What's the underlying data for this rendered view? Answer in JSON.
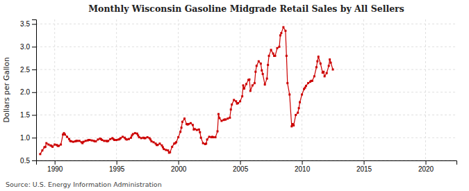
{
  "chart_data": {
    "type": "line",
    "title": "Monthly Wisconsin Gasoline Midgrade Retail Sales by All Sellers",
    "ylabel": "Dollars per Gallon",
    "source": "Source: U.S. Energy Information Administration",
    "color": "#cc0000",
    "marker": "square",
    "grid": true,
    "xlim": [
      1988.5,
      2022.5
    ],
    "ylim": [
      0.5,
      3.6
    ],
    "xticks": [
      1990,
      1995,
      2000,
      2005,
      2010,
      2015,
      2020
    ],
    "yticks": [
      0.5,
      {
        "value": 1.0,
        "label": "1.0"
      },
      1.5,
      {
        "value": 2.0,
        "label": "2.0"
      },
      2.5,
      {
        "value": 3.0,
        "label": "3.0"
      },
      3.5
    ],
    "x": [
      1988.83,
      1989.0,
      1989.17,
      1989.25,
      1989.33,
      1989.5,
      1989.67,
      1989.75,
      1989.83,
      1990.0,
      1990.17,
      1990.25,
      1990.33,
      1990.5,
      1990.67,
      1990.75,
      1990.83,
      1991.0,
      1991.17,
      1991.25,
      1991.33,
      1991.5,
      1991.67,
      1991.75,
      1991.83,
      1992.0,
      1992.17,
      1992.25,
      1992.33,
      1992.5,
      1992.67,
      1992.75,
      1992.83,
      1993.0,
      1993.17,
      1993.25,
      1993.33,
      1993.5,
      1993.67,
      1993.75,
      1993.83,
      1994.0,
      1994.17,
      1994.25,
      1994.33,
      1994.5,
      1994.67,
      1994.75,
      1994.83,
      1995.0,
      1995.17,
      1995.25,
      1995.33,
      1995.5,
      1995.67,
      1995.75,
      1995.83,
      1996.0,
      1996.17,
      1996.25,
      1996.33,
      1996.5,
      1996.67,
      1996.75,
      1996.83,
      1997.0,
      1997.17,
      1997.25,
      1997.33,
      1997.5,
      1997.67,
      1997.75,
      1997.83,
      1998.0,
      1998.17,
      1998.25,
      1998.33,
      1998.5,
      1998.67,
      1998.75,
      1998.83,
      1999.0,
      1999.17,
      1999.25,
      1999.33,
      1999.5,
      1999.67,
      1999.75,
      1999.83,
      2000.0,
      2000.17,
      2000.25,
      2000.33,
      2000.5,
      2000.67,
      2000.75,
      2000.83,
      2001.0,
      2001.17,
      2001.25,
      2001.33,
      2001.5,
      2001.67,
      2001.75,
      2001.83,
      2002.0,
      2002.17,
      2002.25,
      2002.33,
      2002.5,
      2002.67,
      2002.75,
      2002.83,
      2003.0,
      2003.17,
      2003.25,
      2003.33,
      2003.5,
      2003.67,
      2003.75,
      2003.83,
      2004.0,
      2004.17,
      2004.25,
      2004.33,
      2004.5,
      2004.67,
      2004.75,
      2004.83,
      2005.0,
      2005.17,
      2005.25,
      2005.33,
      2005.5,
      2005.67,
      2005.75,
      2005.83,
      2006.0,
      2006.17,
      2006.25,
      2006.33,
      2006.5,
      2006.67,
      2006.75,
      2006.83,
      2007.0,
      2007.17,
      2007.25,
      2007.33,
      2007.5,
      2007.67,
      2007.75,
      2007.83,
      2008.0,
      2008.17,
      2008.25,
      2008.33,
      2008.5,
      2008.67,
      2008.75,
      2008.83,
      2009.0,
      2009.17,
      2009.25,
      2009.33,
      2009.5,
      2009.67,
      2009.75,
      2009.83,
      2010.0,
      2010.17,
      2010.25,
      2010.33,
      2010.5,
      2010.67,
      2010.75,
      2010.83,
      2011.0,
      2011.17,
      2011.25,
      2011.33,
      2011.5,
      2011.67,
      2011.75,
      2011.83,
      2012.0,
      2012.17,
      2012.25,
      2012.33,
      2012.5
    ],
    "values": [
      0.64,
      0.72,
      0.79,
      0.8,
      0.88,
      0.85,
      0.83,
      0.82,
      0.8,
      0.85,
      0.84,
      0.82,
      0.82,
      0.85,
      1.07,
      1.1,
      1.07,
      1.02,
      0.97,
      0.93,
      0.92,
      0.91,
      0.92,
      0.93,
      0.93,
      0.93,
      0.9,
      0.88,
      0.91,
      0.93,
      0.94,
      0.95,
      0.95,
      0.94,
      0.93,
      0.92,
      0.92,
      0.96,
      0.98,
      0.97,
      0.95,
      0.93,
      0.93,
      0.92,
      0.93,
      0.97,
      0.99,
      0.97,
      0.95,
      0.95,
      0.96,
      0.97,
      0.99,
      1.02,
      1.0,
      0.97,
      0.96,
      0.97,
      1.0,
      1.05,
      1.08,
      1.1,
      1.09,
      1.05,
      1.01,
      0.99,
      1.0,
      0.99,
      0.99,
      1.01,
      0.99,
      0.96,
      0.92,
      0.9,
      0.87,
      0.84,
      0.84,
      0.87,
      0.83,
      0.79,
      0.75,
      0.73,
      0.72,
      0.67,
      0.68,
      0.8,
      0.87,
      0.88,
      0.9,
      1.01,
      1.13,
      1.22,
      1.35,
      1.42,
      1.3,
      1.29,
      1.3,
      1.32,
      1.28,
      1.18,
      1.19,
      1.17,
      1.18,
      1.12,
      1.0,
      0.88,
      0.86,
      0.87,
      0.96,
      1.02,
      1.01,
      1.02,
      1.01,
      1.01,
      1.14,
      1.52,
      1.43,
      1.37,
      1.39,
      1.4,
      1.4,
      1.42,
      1.44,
      1.62,
      1.73,
      1.83,
      1.8,
      1.75,
      1.76,
      1.8,
      1.91,
      2.15,
      2.08,
      2.18,
      2.27,
      2.28,
      2.03,
      2.15,
      2.2,
      2.45,
      2.58,
      2.68,
      2.63,
      2.48,
      2.4,
      2.17,
      2.3,
      2.6,
      2.8,
      2.93,
      2.85,
      2.8,
      2.8,
      2.97,
      3.0,
      3.25,
      3.3,
      3.43,
      3.35,
      2.8,
      2.2,
      1.95,
      1.25,
      1.3,
      1.27,
      1.5,
      1.55,
      1.65,
      1.78,
      1.95,
      2.07,
      2.1,
      2.14,
      2.2,
      2.23,
      2.25,
      2.25,
      2.35,
      2.55,
      2.68,
      2.78,
      2.63,
      2.43,
      2.45,
      2.35,
      2.42,
      2.58,
      2.72,
      2.65,
      2.5
    ]
  }
}
